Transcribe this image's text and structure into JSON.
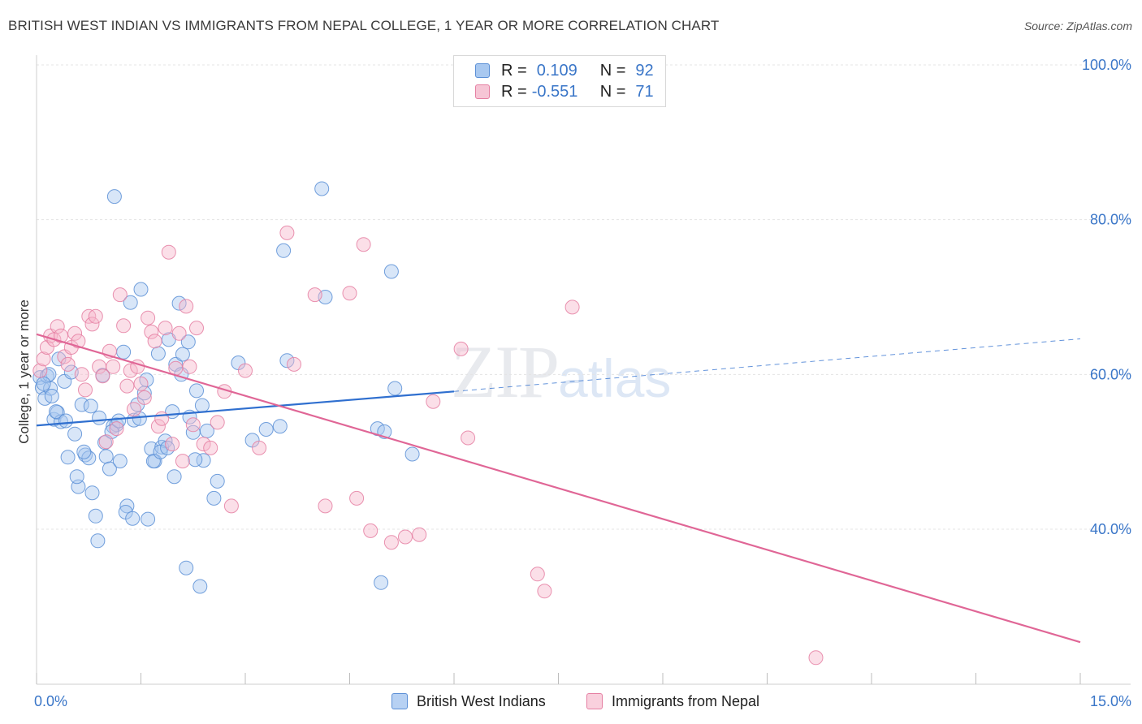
{
  "title": "BRITISH WEST INDIAN VS IMMIGRANTS FROM NEPAL COLLEGE, 1 YEAR OR MORE CORRELATION CHART",
  "source": "Source: ZipAtlas.com",
  "watermark": {
    "zip": "ZIP",
    "atlas": "atlas"
  },
  "legend_top": {
    "rows": [
      {
        "r_label": "R =",
        "r_value": "0.109",
        "n_label": "N =",
        "n_value": "92"
      },
      {
        "r_label": "R =",
        "r_value": "-0.551",
        "n_label": "N =",
        "n_value": "71"
      }
    ]
  },
  "chart_data": {
    "type": "scatter",
    "title": "BRITISH WEST INDIAN VS IMMIGRANTS FROM NEPAL COLLEGE, 1 YEAR OR MORE CORRELATION CHART",
    "xlabel": "",
    "ylabel": "College, 1 year or more",
    "xlim": [
      0,
      15
    ],
    "ylim": [
      20,
      102
    ],
    "x_tick_labels": [
      {
        "value": 0,
        "label": "0.0%"
      },
      {
        "value": 15,
        "label": "15.0%"
      }
    ],
    "y_tick_labels": [
      {
        "value": 100,
        "label": "100.0%"
      },
      {
        "value": 80,
        "label": "80.0%"
      },
      {
        "value": 60,
        "label": "60.0%"
      },
      {
        "value": 40,
        "label": "40.0%"
      }
    ],
    "x_minor_ticks": [
      0,
      1.5,
      3,
      4.5,
      6,
      7.5,
      9,
      10.5,
      12,
      13.5,
      15
    ],
    "grid": true,
    "legend_position": "bottom-center",
    "colors": {
      "blue_fill": "#a8c8f0",
      "blue_stroke": "#5b8fd6",
      "blue_line": "#2f6fcf",
      "pink_fill": "#f6b8cc",
      "pink_stroke": "#e57fa2",
      "pink_line": "#e06696",
      "axis_text": "#3a76c8"
    },
    "series": [
      {
        "name": "British West Indians",
        "color": "#5b8fd6",
        "r": 0.109,
        "n": 92,
        "trend": {
          "x0": 0.0,
          "y0": 53.4,
          "x1": 6.0,
          "y1": 57.8,
          "dashed_to_x": 15.0,
          "dashed_to_y": 64.6
        },
        "points": [
          [
            0.05,
            59.6
          ],
          [
            0.08,
            58.3
          ],
          [
            0.12,
            56.9
          ],
          [
            0.15,
            59.8
          ],
          [
            0.2,
            58.2
          ],
          [
            0.25,
            54.2
          ],
          [
            0.3,
            55.1
          ],
          [
            0.35,
            53.9
          ],
          [
            0.4,
            59.1
          ],
          [
            0.45,
            49.3
          ],
          [
            0.5,
            60.3
          ],
          [
            0.55,
            52.3
          ],
          [
            0.6,
            45.5
          ],
          [
            0.65,
            56.1
          ],
          [
            0.7,
            49.6
          ],
          [
            0.75,
            49.2
          ],
          [
            0.8,
            44.7
          ],
          [
            0.85,
            41.7
          ],
          [
            0.88,
            38.5
          ],
          [
            0.9,
            54.4
          ],
          [
            0.95,
            59.9
          ],
          [
            1.0,
            49.4
          ],
          [
            1.05,
            47.8
          ],
          [
            1.1,
            53.3
          ],
          [
            1.15,
            53.5
          ],
          [
            1.2,
            48.8
          ],
          [
            1.25,
            62.9
          ],
          [
            1.3,
            43.0
          ],
          [
            1.35,
            69.3
          ],
          [
            1.4,
            54.1
          ],
          [
            1.45,
            56.1
          ],
          [
            1.5,
            71.0
          ],
          [
            1.55,
            57.6
          ],
          [
            1.6,
            41.3
          ],
          [
            1.65,
            50.4
          ],
          [
            1.7,
            48.8
          ],
          [
            1.75,
            62.7
          ],
          [
            1.8,
            50.6
          ],
          [
            1.85,
            51.4
          ],
          [
            1.9,
            64.5
          ],
          [
            1.95,
            55.2
          ],
          [
            2.0,
            61.3
          ],
          [
            2.05,
            69.2
          ],
          [
            2.1,
            62.6
          ],
          [
            2.15,
            35.0
          ],
          [
            2.2,
            54.5
          ],
          [
            2.25,
            52.5
          ],
          [
            2.3,
            57.9
          ],
          [
            2.35,
            32.6
          ],
          [
            2.4,
            48.9
          ],
          [
            2.45,
            52.7
          ],
          [
            2.55,
            44.0
          ],
          [
            2.6,
            46.2
          ],
          [
            2.9,
            61.5
          ],
          [
            3.1,
            51.5
          ],
          [
            3.3,
            52.9
          ],
          [
            3.5,
            53.3
          ],
          [
            3.55,
            76.0
          ],
          [
            3.6,
            61.8
          ],
          [
            4.1,
            84.0
          ],
          [
            4.15,
            70.0
          ],
          [
            4.9,
            53.0
          ],
          [
            5.0,
            52.6
          ],
          [
            5.1,
            73.3
          ],
          [
            5.15,
            58.2
          ],
          [
            5.4,
            49.7
          ],
          [
            4.95,
            33.1
          ],
          [
            1.12,
            83.0
          ],
          [
            0.18,
            60.0
          ],
          [
            0.22,
            57.2
          ],
          [
            0.28,
            55.2
          ],
          [
            0.42,
            54.0
          ],
          [
            0.58,
            46.8
          ],
          [
            0.68,
            50.0
          ],
          [
            0.78,
            55.9
          ],
          [
            0.98,
            51.2
          ],
          [
            1.08,
            52.6
          ],
          [
            1.18,
            54.0
          ],
          [
            1.28,
            42.2
          ],
          [
            1.38,
            41.4
          ],
          [
            1.48,
            54.3
          ],
          [
            1.58,
            59.3
          ],
          [
            1.68,
            48.8
          ],
          [
            1.78,
            50.0
          ],
          [
            1.88,
            50.5
          ],
          [
            1.98,
            46.8
          ],
          [
            2.08,
            60.0
          ],
          [
            2.18,
            64.2
          ],
          [
            2.28,
            49.0
          ],
          [
            2.38,
            56.0
          ],
          [
            0.1,
            58.8
          ],
          [
            0.32,
            62.0
          ]
        ]
      },
      {
        "name": "Immigrants from Nepal",
        "color": "#e57fa2",
        "r": -0.551,
        "n": 71,
        "trend": {
          "x0": 0.0,
          "y0": 65.2,
          "x1": 15.0,
          "y1": 25.4
        },
        "points": [
          [
            0.05,
            60.5
          ],
          [
            0.1,
            62.0
          ],
          [
            0.15,
            63.5
          ],
          [
            0.2,
            65.0
          ],
          [
            0.25,
            64.5
          ],
          [
            0.3,
            66.2
          ],
          [
            0.35,
            65.0
          ],
          [
            0.4,
            62.3
          ],
          [
            0.45,
            61.3
          ],
          [
            0.5,
            63.5
          ],
          [
            0.55,
            65.3
          ],
          [
            0.6,
            64.3
          ],
          [
            0.65,
            60.0
          ],
          [
            0.7,
            58.0
          ],
          [
            0.75,
            67.5
          ],
          [
            0.8,
            66.5
          ],
          [
            0.85,
            67.5
          ],
          [
            0.9,
            61.0
          ],
          [
            0.95,
            59.8
          ],
          [
            1.0,
            51.3
          ],
          [
            1.05,
            63.0
          ],
          [
            1.1,
            61.0
          ],
          [
            1.15,
            53.0
          ],
          [
            1.2,
            70.3
          ],
          [
            1.25,
            66.3
          ],
          [
            1.3,
            58.5
          ],
          [
            1.35,
            60.5
          ],
          [
            1.4,
            55.5
          ],
          [
            1.45,
            61.0
          ],
          [
            1.5,
            58.8
          ],
          [
            1.55,
            57.0
          ],
          [
            1.6,
            67.3
          ],
          [
            1.65,
            65.5
          ],
          [
            1.7,
            64.3
          ],
          [
            1.75,
            53.3
          ],
          [
            1.8,
            54.3
          ],
          [
            1.85,
            66.0
          ],
          [
            1.9,
            75.8
          ],
          [
            1.95,
            51.0
          ],
          [
            2.0,
            60.8
          ],
          [
            2.05,
            65.3
          ],
          [
            2.1,
            48.8
          ],
          [
            2.15,
            68.8
          ],
          [
            2.2,
            61.0
          ],
          [
            2.25,
            53.5
          ],
          [
            2.3,
            66.0
          ],
          [
            2.4,
            51.0
          ],
          [
            2.5,
            50.5
          ],
          [
            2.6,
            53.8
          ],
          [
            2.7,
            57.8
          ],
          [
            2.8,
            43.0
          ],
          [
            3.0,
            60.5
          ],
          [
            3.2,
            50.5
          ],
          [
            3.6,
            78.3
          ],
          [
            3.7,
            61.3
          ],
          [
            4.0,
            70.3
          ],
          [
            4.15,
            43.0
          ],
          [
            4.5,
            70.5
          ],
          [
            4.6,
            44.0
          ],
          [
            4.7,
            76.8
          ],
          [
            4.8,
            39.8
          ],
          [
            5.1,
            38.3
          ],
          [
            5.3,
            39.0
          ],
          [
            5.5,
            39.3
          ],
          [
            5.7,
            56.5
          ],
          [
            6.1,
            63.3
          ],
          [
            6.2,
            51.8
          ],
          [
            7.2,
            34.2
          ],
          [
            7.3,
            32.0
          ],
          [
            7.7,
            68.7
          ],
          [
            11.2,
            23.4
          ]
        ]
      }
    ]
  },
  "legend_bottom": {
    "items": [
      {
        "label": "British West Indians"
      },
      {
        "label": "Immigrants from Nepal"
      }
    ]
  }
}
